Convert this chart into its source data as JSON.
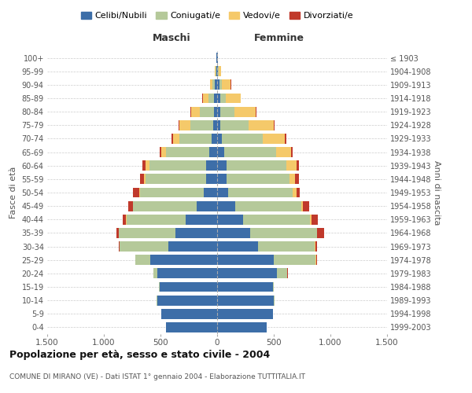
{
  "age_groups": [
    "0-4",
    "5-9",
    "10-14",
    "15-19",
    "20-24",
    "25-29",
    "30-34",
    "35-39",
    "40-44",
    "45-49",
    "50-54",
    "55-59",
    "60-64",
    "65-69",
    "70-74",
    "75-79",
    "80-84",
    "85-89",
    "90-94",
    "95-99",
    "100+"
  ],
  "birth_years": [
    "1999-2003",
    "1994-1998",
    "1989-1993",
    "1984-1988",
    "1979-1983",
    "1974-1978",
    "1969-1973",
    "1964-1968",
    "1959-1963",
    "1954-1958",
    "1949-1953",
    "1944-1948",
    "1939-1943",
    "1934-1938",
    "1929-1933",
    "1924-1928",
    "1919-1923",
    "1914-1918",
    "1909-1913",
    "1904-1908",
    "≤ 1903"
  ],
  "colors": {
    "celibi": "#3d6ea8",
    "coniugati": "#b5c99a",
    "vedovi": "#f5c96a",
    "divorziati": "#c0392b"
  },
  "maschi": {
    "celibi": [
      450,
      490,
      530,
      510,
      530,
      590,
      430,
      370,
      280,
      180,
      120,
      100,
      100,
      70,
      50,
      35,
      30,
      25,
      20,
      10,
      5
    ],
    "coniugati": [
      0,
      0,
      5,
      5,
      30,
      130,
      430,
      500,
      520,
      560,
      560,
      530,
      500,
      380,
      280,
      200,
      120,
      50,
      20,
      5,
      0
    ],
    "vedovi": [
      0,
      0,
      0,
      0,
      0,
      0,
      0,
      0,
      5,
      5,
      10,
      15,
      30,
      40,
      60,
      100,
      80,
      50,
      20,
      5,
      0
    ],
    "divorziati": [
      0,
      0,
      0,
      0,
      0,
      5,
      10,
      20,
      30,
      40,
      50,
      35,
      30,
      20,
      10,
      5,
      5,
      5,
      5,
      0,
      0
    ]
  },
  "femmine": {
    "celibi": [
      440,
      490,
      500,
      490,
      530,
      500,
      360,
      290,
      230,
      160,
      100,
      80,
      80,
      60,
      40,
      30,
      30,
      25,
      20,
      10,
      5
    ],
    "coniugati": [
      0,
      0,
      5,
      10,
      90,
      370,
      500,
      590,
      590,
      580,
      570,
      560,
      530,
      460,
      360,
      250,
      120,
      50,
      20,
      5,
      0
    ],
    "vedovi": [
      0,
      0,
      0,
      0,
      0,
      5,
      5,
      5,
      10,
      20,
      30,
      50,
      90,
      130,
      200,
      220,
      190,
      130,
      80,
      20,
      5
    ],
    "divorziati": [
      0,
      0,
      0,
      0,
      5,
      10,
      20,
      60,
      60,
      50,
      30,
      35,
      20,
      15,
      10,
      10,
      5,
      5,
      5,
      0,
      0
    ]
  },
  "title": "Popolazione per età, sesso e stato civile - 2004",
  "subtitle": "COMUNE DI MIRANO (VE) - Dati ISTAT 1° gennaio 2004 - Elaborazione TUTTITALIA.IT",
  "xlabel_left": "Maschi",
  "xlabel_right": "Femmine",
  "ylabel_left": "Fasce di età",
  "ylabel_right": "Anni di nascita",
  "xlim": 1500,
  "background_color": "#ffffff",
  "grid_color": "#cccccc",
  "legend_labels": [
    "Celibi/Nubili",
    "Coniugati/e",
    "Vedovi/e",
    "Divorziati/e"
  ]
}
